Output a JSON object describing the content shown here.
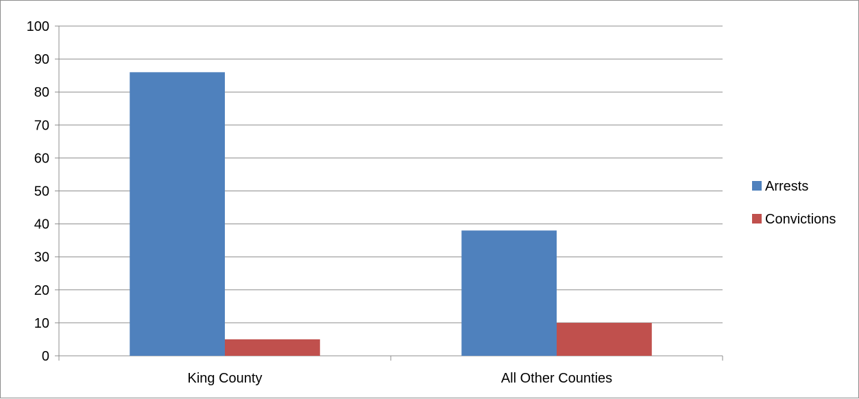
{
  "chart_data": {
    "type": "bar",
    "title": "",
    "xlabel": "",
    "ylabel": "",
    "categories": [
      "King County",
      "All Other Counties"
    ],
    "series": [
      {
        "name": "Arrests",
        "values": [
          86,
          38
        ],
        "color": "#4f81bd"
      },
      {
        "name": "Convictions",
        "values": [
          5,
          10
        ],
        "color": "#c0504d"
      }
    ],
    "ylim": [
      0,
      100
    ],
    "yticks": [
      0,
      10,
      20,
      30,
      40,
      50,
      60,
      70,
      80,
      90,
      100
    ],
    "grid": true,
    "legend_position": "right"
  }
}
